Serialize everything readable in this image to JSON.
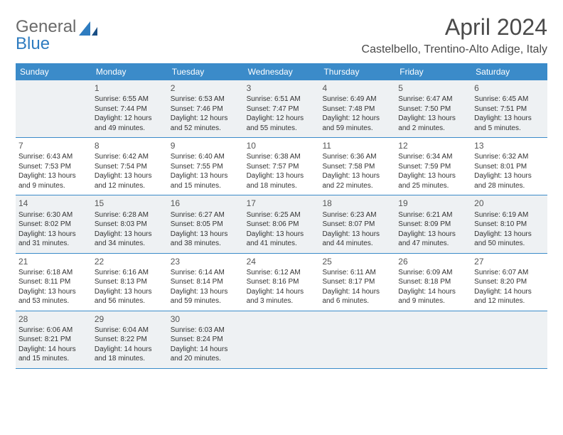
{
  "brand": {
    "part1": "General",
    "part2": "Blue"
  },
  "title": "April 2024",
  "location": "Castelbello, Trentino-Alto Adige, Italy",
  "colors": {
    "header_bg": "#3b8bc9",
    "header_text": "#ffffff",
    "shaded_bg": "#eef1f3",
    "border": "#3b8bc9",
    "brand_gray": "#6a6a6a",
    "brand_blue": "#2e7cc0"
  },
  "weekdays": [
    "Sunday",
    "Monday",
    "Tuesday",
    "Wednesday",
    "Thursday",
    "Friday",
    "Saturday"
  ],
  "weeks": [
    [
      {
        "num": "",
        "lines": []
      },
      {
        "num": "1",
        "lines": [
          "Sunrise: 6:55 AM",
          "Sunset: 7:44 PM",
          "Daylight: 12 hours",
          "and 49 minutes."
        ]
      },
      {
        "num": "2",
        "lines": [
          "Sunrise: 6:53 AM",
          "Sunset: 7:46 PM",
          "Daylight: 12 hours",
          "and 52 minutes."
        ]
      },
      {
        "num": "3",
        "lines": [
          "Sunrise: 6:51 AM",
          "Sunset: 7:47 PM",
          "Daylight: 12 hours",
          "and 55 minutes."
        ]
      },
      {
        "num": "4",
        "lines": [
          "Sunrise: 6:49 AM",
          "Sunset: 7:48 PM",
          "Daylight: 12 hours",
          "and 59 minutes."
        ]
      },
      {
        "num": "5",
        "lines": [
          "Sunrise: 6:47 AM",
          "Sunset: 7:50 PM",
          "Daylight: 13 hours",
          "and 2 minutes."
        ]
      },
      {
        "num": "6",
        "lines": [
          "Sunrise: 6:45 AM",
          "Sunset: 7:51 PM",
          "Daylight: 13 hours",
          "and 5 minutes."
        ]
      }
    ],
    [
      {
        "num": "7",
        "lines": [
          "Sunrise: 6:43 AM",
          "Sunset: 7:53 PM",
          "Daylight: 13 hours",
          "and 9 minutes."
        ]
      },
      {
        "num": "8",
        "lines": [
          "Sunrise: 6:42 AM",
          "Sunset: 7:54 PM",
          "Daylight: 13 hours",
          "and 12 minutes."
        ]
      },
      {
        "num": "9",
        "lines": [
          "Sunrise: 6:40 AM",
          "Sunset: 7:55 PM",
          "Daylight: 13 hours",
          "and 15 minutes."
        ]
      },
      {
        "num": "10",
        "lines": [
          "Sunrise: 6:38 AM",
          "Sunset: 7:57 PM",
          "Daylight: 13 hours",
          "and 18 minutes."
        ]
      },
      {
        "num": "11",
        "lines": [
          "Sunrise: 6:36 AM",
          "Sunset: 7:58 PM",
          "Daylight: 13 hours",
          "and 22 minutes."
        ]
      },
      {
        "num": "12",
        "lines": [
          "Sunrise: 6:34 AM",
          "Sunset: 7:59 PM",
          "Daylight: 13 hours",
          "and 25 minutes."
        ]
      },
      {
        "num": "13",
        "lines": [
          "Sunrise: 6:32 AM",
          "Sunset: 8:01 PM",
          "Daylight: 13 hours",
          "and 28 minutes."
        ]
      }
    ],
    [
      {
        "num": "14",
        "lines": [
          "Sunrise: 6:30 AM",
          "Sunset: 8:02 PM",
          "Daylight: 13 hours",
          "and 31 minutes."
        ]
      },
      {
        "num": "15",
        "lines": [
          "Sunrise: 6:28 AM",
          "Sunset: 8:03 PM",
          "Daylight: 13 hours",
          "and 34 minutes."
        ]
      },
      {
        "num": "16",
        "lines": [
          "Sunrise: 6:27 AM",
          "Sunset: 8:05 PM",
          "Daylight: 13 hours",
          "and 38 minutes."
        ]
      },
      {
        "num": "17",
        "lines": [
          "Sunrise: 6:25 AM",
          "Sunset: 8:06 PM",
          "Daylight: 13 hours",
          "and 41 minutes."
        ]
      },
      {
        "num": "18",
        "lines": [
          "Sunrise: 6:23 AM",
          "Sunset: 8:07 PM",
          "Daylight: 13 hours",
          "and 44 minutes."
        ]
      },
      {
        "num": "19",
        "lines": [
          "Sunrise: 6:21 AM",
          "Sunset: 8:09 PM",
          "Daylight: 13 hours",
          "and 47 minutes."
        ]
      },
      {
        "num": "20",
        "lines": [
          "Sunrise: 6:19 AM",
          "Sunset: 8:10 PM",
          "Daylight: 13 hours",
          "and 50 minutes."
        ]
      }
    ],
    [
      {
        "num": "21",
        "lines": [
          "Sunrise: 6:18 AM",
          "Sunset: 8:11 PM",
          "Daylight: 13 hours",
          "and 53 minutes."
        ]
      },
      {
        "num": "22",
        "lines": [
          "Sunrise: 6:16 AM",
          "Sunset: 8:13 PM",
          "Daylight: 13 hours",
          "and 56 minutes."
        ]
      },
      {
        "num": "23",
        "lines": [
          "Sunrise: 6:14 AM",
          "Sunset: 8:14 PM",
          "Daylight: 13 hours",
          "and 59 minutes."
        ]
      },
      {
        "num": "24",
        "lines": [
          "Sunrise: 6:12 AM",
          "Sunset: 8:16 PM",
          "Daylight: 14 hours",
          "and 3 minutes."
        ]
      },
      {
        "num": "25",
        "lines": [
          "Sunrise: 6:11 AM",
          "Sunset: 8:17 PM",
          "Daylight: 14 hours",
          "and 6 minutes."
        ]
      },
      {
        "num": "26",
        "lines": [
          "Sunrise: 6:09 AM",
          "Sunset: 8:18 PM",
          "Daylight: 14 hours",
          "and 9 minutes."
        ]
      },
      {
        "num": "27",
        "lines": [
          "Sunrise: 6:07 AM",
          "Sunset: 8:20 PM",
          "Daylight: 14 hours",
          "and 12 minutes."
        ]
      }
    ],
    [
      {
        "num": "28",
        "lines": [
          "Sunrise: 6:06 AM",
          "Sunset: 8:21 PM",
          "Daylight: 14 hours",
          "and 15 minutes."
        ]
      },
      {
        "num": "29",
        "lines": [
          "Sunrise: 6:04 AM",
          "Sunset: 8:22 PM",
          "Daylight: 14 hours",
          "and 18 minutes."
        ]
      },
      {
        "num": "30",
        "lines": [
          "Sunrise: 6:03 AM",
          "Sunset: 8:24 PM",
          "Daylight: 14 hours",
          "and 20 minutes."
        ]
      },
      {
        "num": "",
        "lines": []
      },
      {
        "num": "",
        "lines": []
      },
      {
        "num": "",
        "lines": []
      },
      {
        "num": "",
        "lines": []
      }
    ]
  ]
}
